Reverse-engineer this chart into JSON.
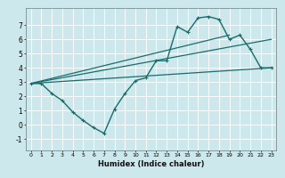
{
  "xlabel": "Humidex (Indice chaleur)",
  "ylabel": "",
  "background_color": "#cce8ec",
  "line_color": "#1a6b6b",
  "xlim": [
    -0.5,
    23.5
  ],
  "ylim": [
    -1.8,
    8.2
  ],
  "yticks": [
    -1,
    0,
    1,
    2,
    3,
    4,
    5,
    6,
    7
  ],
  "xticks": [
    0,
    1,
    2,
    3,
    4,
    5,
    6,
    7,
    8,
    9,
    10,
    11,
    12,
    13,
    14,
    15,
    16,
    17,
    18,
    19,
    20,
    21,
    22,
    23
  ],
  "series1_x": [
    0,
    1,
    2,
    3,
    4,
    5,
    6,
    7,
    8,
    9,
    10,
    11,
    12,
    13,
    14,
    15,
    16,
    17,
    18,
    19,
    20,
    21,
    22,
    23
  ],
  "series1_y": [
    2.9,
    2.9,
    2.2,
    1.7,
    0.9,
    0.3,
    -0.2,
    -0.6,
    1.1,
    2.2,
    3.1,
    3.3,
    4.5,
    4.5,
    6.9,
    6.5,
    7.5,
    7.6,
    7.4,
    6.0,
    6.3,
    5.3,
    4.0,
    4.0
  ],
  "trend1_x": [
    0,
    23
  ],
  "trend1_y": [
    2.9,
    4.0
  ],
  "trend2_x": [
    0,
    23
  ],
  "trend2_y": [
    2.9,
    6.0
  ],
  "trend3_x": [
    0,
    19
  ],
  "trend3_y": [
    2.9,
    6.3
  ]
}
